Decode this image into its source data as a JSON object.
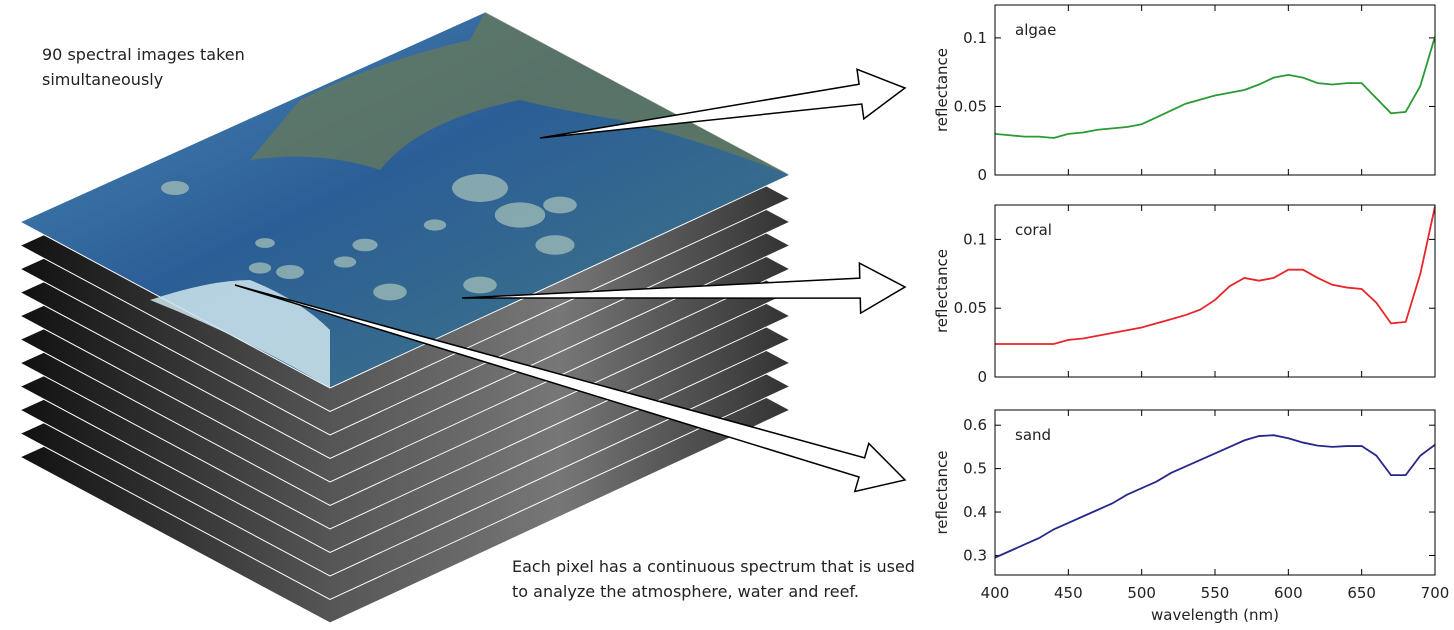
{
  "chart_data": [
    {
      "type": "line",
      "ylabel": "reflectance",
      "xlim": [
        400,
        700
      ],
      "xticks": [
        400,
        450,
        500,
        550,
        600,
        650,
        700
      ],
      "ylim": [
        0,
        0.124
      ],
      "yticks": [
        0,
        0.05,
        0.1
      ],
      "x": [
        400,
        410,
        420,
        430,
        440,
        450,
        460,
        470,
        480,
        490,
        500,
        510,
        520,
        530,
        540,
        550,
        560,
        570,
        580,
        590,
        600,
        610,
        620,
        630,
        640,
        650,
        660,
        670,
        680,
        690,
        700
      ],
      "series": [
        {
          "name": "algae",
          "color": "#2a9a35",
          "values": [
            0.03,
            0.029,
            0.028,
            0.028,
            0.027,
            0.03,
            0.031,
            0.033,
            0.034,
            0.035,
            0.037,
            0.042,
            0.047,
            0.052,
            0.055,
            0.058,
            0.06,
            0.062,
            0.066,
            0.071,
            0.073,
            0.071,
            0.067,
            0.066,
            0.067,
            0.067,
            0.056,
            0.045,
            0.046,
            0.065,
            0.101
          ]
        }
      ]
    },
    {
      "type": "line",
      "ylabel": "reflectance",
      "xlim": [
        400,
        700
      ],
      "xticks": [
        400,
        450,
        500,
        550,
        600,
        650,
        700
      ],
      "ylim": [
        0,
        0.125
      ],
      "yticks": [
        0,
        0.05,
        0.1
      ],
      "x": [
        400,
        410,
        420,
        430,
        440,
        450,
        460,
        470,
        480,
        490,
        500,
        510,
        520,
        530,
        540,
        550,
        560,
        570,
        580,
        590,
        600,
        610,
        620,
        630,
        640,
        650,
        660,
        670,
        680,
        690,
        700
      ],
      "series": [
        {
          "name": "coral",
          "color": "#e8262a",
          "values": [
            0.024,
            0.024,
            0.024,
            0.024,
            0.024,
            0.027,
            0.028,
            0.03,
            0.032,
            0.034,
            0.036,
            0.039,
            0.042,
            0.045,
            0.049,
            0.056,
            0.066,
            0.072,
            0.07,
            0.072,
            0.078,
            0.078,
            0.072,
            0.067,
            0.065,
            0.064,
            0.054,
            0.039,
            0.04,
            0.075,
            0.124
          ]
        }
      ]
    },
    {
      "type": "line",
      "ylabel": "reflectance",
      "xlabel": "wavelength (nm)",
      "xlim": [
        400,
        700
      ],
      "xticks": [
        400,
        450,
        500,
        550,
        600,
        650,
        700
      ],
      "ylim": [
        0.255,
        0.635
      ],
      "yticks": [
        0.3,
        0.4,
        0.5,
        0.6
      ],
      "x": [
        400,
        410,
        420,
        430,
        440,
        450,
        460,
        470,
        480,
        490,
        500,
        510,
        520,
        530,
        540,
        550,
        560,
        570,
        580,
        590,
        600,
        610,
        620,
        630,
        640,
        650,
        660,
        670,
        680,
        690,
        700
      ],
      "series": [
        {
          "name": "sand",
          "color": "#25288a",
          "values": [
            0.295,
            0.31,
            0.325,
            0.34,
            0.36,
            0.375,
            0.39,
            0.405,
            0.42,
            0.44,
            0.455,
            0.47,
            0.49,
            0.505,
            0.52,
            0.535,
            0.55,
            0.565,
            0.575,
            0.577,
            0.57,
            0.56,
            0.553,
            0.55,
            0.552,
            0.552,
            0.53,
            0.485,
            0.485,
            0.53,
            0.555
          ]
        }
      ]
    }
  ],
  "annotations": [
    "90 spectral images taken simultaneously",
    "Each pixel has a continuous spectrum that is used to analyze the atmosphere, water and reef."
  ]
}
